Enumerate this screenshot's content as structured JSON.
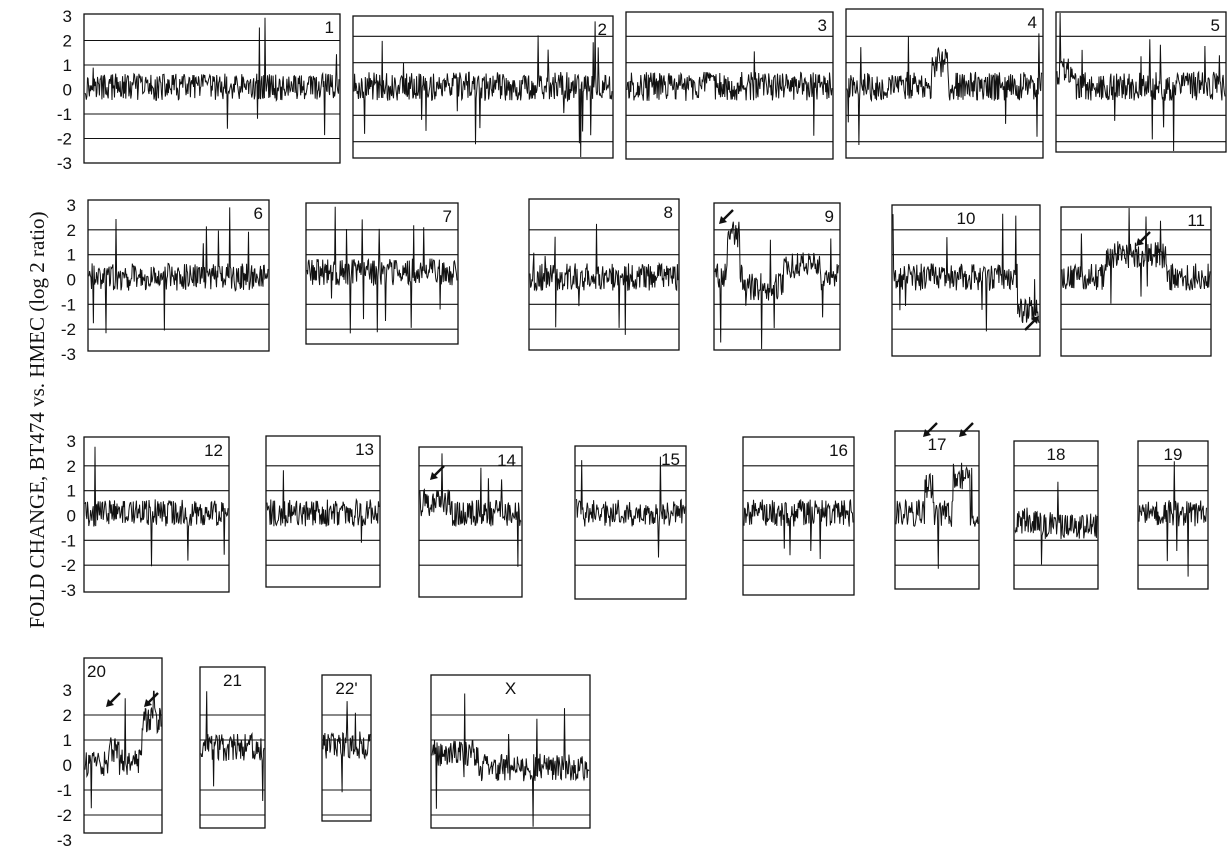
{
  "chart_data": {
    "type": "line",
    "ylabel": "FOLD CHANGE, BT474 vs. HMEC (log 2 ratio)",
    "ylim": [
      -3,
      3
    ],
    "yticks": [
      3,
      2,
      1,
      0,
      -1,
      -2,
      -3
    ],
    "grid": true,
    "line_color": "#111111",
    "panels": [
      {
        "label": "1",
        "arrows": 0
      },
      {
        "label": "2",
        "arrows": 0
      },
      {
        "label": "3",
        "arrows": 0
      },
      {
        "label": "4",
        "arrows": 0
      },
      {
        "label": "5",
        "arrows": 0
      },
      {
        "label": "6",
        "arrows": 0
      },
      {
        "label": "7",
        "arrows": 0
      },
      {
        "label": "8",
        "arrows": 0
      },
      {
        "label": "9",
        "arrows": 1
      },
      {
        "label": "10",
        "arrows": 1
      },
      {
        "label": "11",
        "arrows": 1
      },
      {
        "label": "12",
        "arrows": 0
      },
      {
        "label": "13",
        "arrows": 0
      },
      {
        "label": "14",
        "arrows": 1
      },
      {
        "label": "15",
        "arrows": 0
      },
      {
        "label": "16",
        "arrows": 0
      },
      {
        "label": "17",
        "arrows": 2
      },
      {
        "label": "18",
        "arrows": 0
      },
      {
        "label": "19",
        "arrows": 0
      },
      {
        "label": "20",
        "arrows": 2
      },
      {
        "label": "21",
        "arrows": 0
      },
      {
        "label": "22'",
        "arrows": 0
      },
      {
        "label": "X",
        "arrows": 0
      }
    ]
  }
}
